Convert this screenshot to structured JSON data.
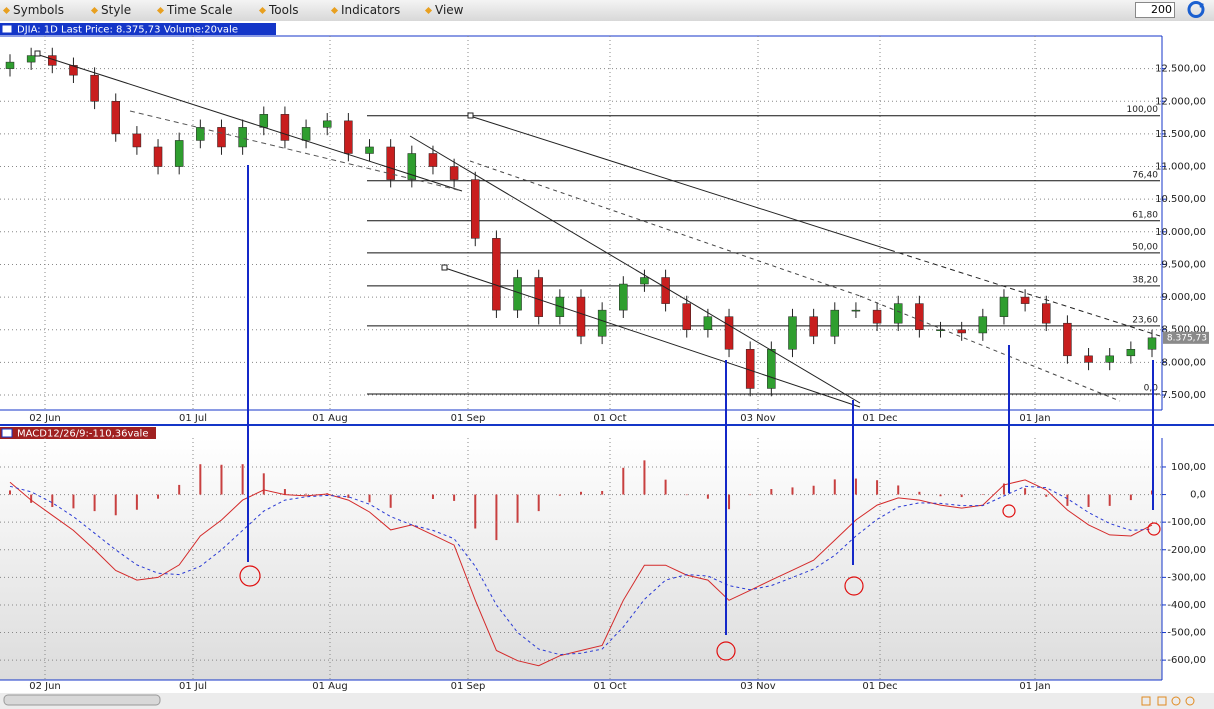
{
  "toolbar": {
    "menus": [
      "Symbols",
      "Style",
      "Time Scale",
      "Tools",
      "Indicators",
      "View"
    ],
    "period": "200"
  },
  "chart_data": [
    {
      "type": "candlestick",
      "title": "DJIA: 1D Last Price: 8.375,73 Volume:20vale",
      "x_labels": [
        "02 Jun",
        "01 Jul",
        "01 Aug",
        "01 Sep",
        "01 Oct",
        "03 Nov",
        "01 Dec",
        "01 Jan"
      ],
      "open": [
        12500,
        12600,
        12700,
        12550,
        12400,
        12000,
        11500,
        11300,
        11000,
        11400,
        11600,
        11300,
        11600,
        11800,
        11400,
        11600,
        11700,
        11200,
        11300,
        10800,
        11200,
        11000,
        10800,
        9900,
        8800,
        9300,
        8700,
        9000,
        8400,
        8800,
        9200,
        9300,
        8900,
        8500,
        8700,
        8200,
        7600,
        8200,
        8700,
        8400,
        8800,
        8800,
        8600,
        8900,
        8500,
        8500,
        8450,
        8700,
        9000,
        8900,
        8600,
        8100,
        8000,
        8100,
        8200
      ],
      "high": [
        12720,
        12820,
        12820,
        12670,
        12520,
        12120,
        11620,
        11420,
        11520,
        11720,
        11720,
        11720,
        11920,
        11920,
        11720,
        11820,
        11820,
        11420,
        11420,
        11320,
        11320,
        11120,
        10920,
        10020,
        9420,
        9420,
        9120,
        9120,
        8920,
        9320,
        9420,
        9420,
        9020,
        8820,
        8820,
        8320,
        8320,
        8820,
        8820,
        8920,
        8920,
        8920,
        9020,
        9020,
        8620,
        8620,
        8820,
        9120,
        9120,
        9020,
        8720,
        8220,
        8220,
        8320,
        8500
      ],
      "low": [
        12380,
        12480,
        12430,
        12280,
        11880,
        11380,
        11180,
        10880,
        10880,
        11280,
        11180,
        11180,
        11480,
        11280,
        11280,
        11480,
        11080,
        11080,
        10680,
        10680,
        10880,
        10680,
        9780,
        8680,
        8680,
        8580,
        8580,
        8280,
        8280,
        8680,
        9080,
        8780,
        8380,
        8380,
        8080,
        7480,
        7480,
        8080,
        8280,
        8280,
        8680,
        8480,
        8480,
        8380,
        8380,
        8330,
        8330,
        8580,
        8780,
        8480,
        7980,
        7880,
        7880,
        7980,
        8080
      ],
      "close": [
        12600,
        12700,
        12550,
        12400,
        12000,
        11500,
        11300,
        11000,
        11400,
        11600,
        11300,
        11600,
        11800,
        11400,
        11600,
        11700,
        11200,
        11300,
        10800,
        11200,
        11000,
        10800,
        9900,
        8800,
        9300,
        8700,
        9000,
        8400,
        8800,
        9200,
        9300,
        8900,
        8500,
        8700,
        8200,
        7600,
        8200,
        8700,
        8400,
        8800,
        8800,
        8600,
        8900,
        8500,
        8500,
        8450,
        8700,
        9000,
        8900,
        8600,
        8100,
        8000,
        8100,
        8200,
        8375.73
      ],
      "colors": {
        "up": "#2f9e2f",
        "down": "#c81e1e"
      },
      "ylim": [
        7270,
        13000
      ],
      "yticks": [
        {
          "value": 7500,
          "label": "7.500,00"
        },
        {
          "value": 8000,
          "label": "8.000,00"
        },
        {
          "value": 8500,
          "label": "8.500,00"
        },
        {
          "value": 9000,
          "label": "9.000,00"
        },
        {
          "value": 9500,
          "label": "9.500,00"
        },
        {
          "value": 10000,
          "label": "10.000,00"
        },
        {
          "value": 10500,
          "label": "10.500,00"
        },
        {
          "value": 11000,
          "label": "11.000,00"
        },
        {
          "value": 11500,
          "label": "11.500,00"
        },
        {
          "value": 12000,
          "label": "12.000,00"
        },
        {
          "value": 12500,
          "label": "12.500,00"
        }
      ],
      "grid": true,
      "last_price": {
        "value": 8375.73,
        "label": "8.375,73"
      },
      "fib_levels": [
        {
          "value": 100,
          "label": "100,00",
          "price": 11779
        },
        {
          "value": 76.4,
          "label": "76,40",
          "price": 10782
        },
        {
          "value": 61.8,
          "label": "61,80",
          "price": 10169
        },
        {
          "value": 50,
          "label": "50,00",
          "price": 9678
        },
        {
          "value": 38.2,
          "label": "38,20",
          "price": 9172
        },
        {
          "value": 23.6,
          "label": "23,60",
          "price": 8558
        },
        {
          "value": 0,
          "label": "0,0",
          "price": 7515
        }
      ]
    },
    {
      "type": "macd",
      "title": "MACD12/26/9:-110,36vale",
      "x_labels": [
        "02 Jun",
        "01 Jul",
        "01 Aug",
        "01 Sep",
        "01 Oct",
        "03 Nov",
        "01 Dec",
        "01 Jan"
      ],
      "series": [
        {
          "color": "#d42a2a",
          "style": "solid",
          "values": [
            45,
            -20,
            -75,
            -130,
            -200,
            -275,
            -310,
            -300,
            -255,
            -150,
            -92,
            -20,
            17,
            0,
            -5,
            2,
            -20,
            -63,
            -128,
            -110,
            -146,
            -183,
            -383,
            -565,
            -602,
            -620,
            -584,
            -565,
            -547,
            -383,
            -256,
            -256,
            -292,
            -310,
            -383,
            -347,
            -310,
            -274,
            -238,
            -165,
            -92,
            -38,
            -12,
            -20,
            -38,
            -49,
            -38,
            35,
            53,
            17,
            -56,
            -110,
            -146,
            -150,
            -110.36
          ]
        },
        {
          "color": "#2a3ad4",
          "style": "dashed",
          "values": [
            30,
            10,
            -30,
            -80,
            -140,
            -200,
            -255,
            -285,
            -290,
            -260,
            -200,
            -130,
            -60,
            -20,
            -8,
            -3,
            -8,
            -35,
            -80,
            -110,
            -130,
            -160,
            -260,
            -400,
            -500,
            -560,
            -580,
            -575,
            -560,
            -480,
            -380,
            -310,
            -290,
            -295,
            -330,
            -345,
            -330,
            -300,
            -270,
            -220,
            -150,
            -90,
            -45,
            -30,
            -32,
            -40,
            -40,
            -5,
            30,
            25,
            -15,
            -65,
            -105,
            -130,
            -125
          ]
        }
      ],
      "histogram": {
        "color": "#c84040",
        "values": [
          15,
          -30,
          -45,
          -50,
          -60,
          -75,
          -55,
          -15,
          35,
          110,
          108,
          110,
          77,
          20,
          3,
          5,
          -12,
          -28,
          -48,
          0,
          -16,
          -23,
          -123,
          -165,
          -102,
          -60,
          -4,
          10,
          13,
          97,
          124,
          54,
          -2,
          -15,
          -53,
          -2,
          20,
          26,
          32,
          55,
          58,
          52,
          33,
          10,
          -6,
          -9,
          2,
          40,
          23,
          -8,
          -41,
          -45,
          -41,
          -20,
          14.64
        ]
      },
      "ylim": [
        -672,
        205
      ],
      "yticks": [
        {
          "value": 100,
          "label": "100,00"
        },
        {
          "value": 0,
          "label": "0,0"
        },
        {
          "value": -100,
          "label": "-100,00"
        },
        {
          "value": -200,
          "label": "-200,00"
        },
        {
          "value": -300,
          "label": "-300,00"
        },
        {
          "value": -400,
          "label": "-400,00"
        },
        {
          "value": -500,
          "label": "-500,00"
        },
        {
          "value": -600,
          "label": "-600,00"
        }
      ],
      "grid": true
    }
  ]
}
